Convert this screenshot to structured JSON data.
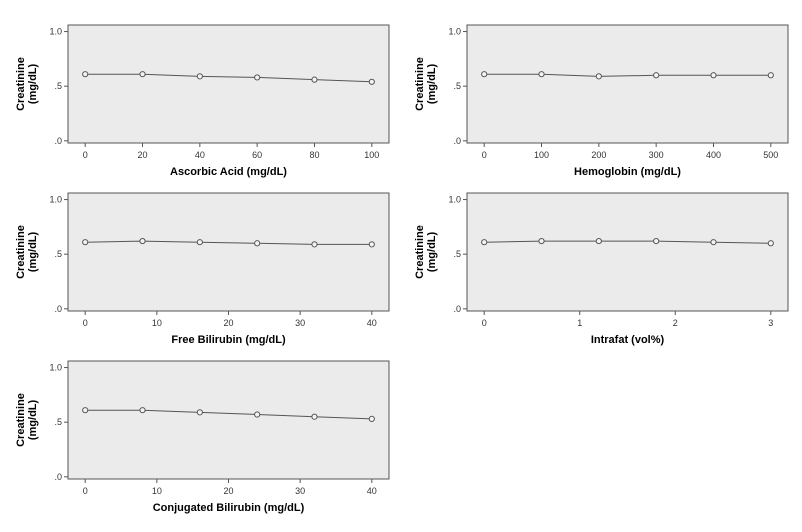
{
  "colors": {
    "plot_background": "#ebebeb",
    "line": "#555555",
    "marker_fill": "#f4f4f4",
    "marker_stroke": "#555555",
    "frame": "#555555"
  },
  "chart_data": [
    {
      "type": "line",
      "xlabel": "Ascorbic Acid (mg/dL)",
      "ylabel": "Creatinine (mg/dL)",
      "ylabel_lines": [
        "Creatinine",
        "(mg/dL)"
      ],
      "x": [
        0,
        20,
        40,
        60,
        80,
        100
      ],
      "y": [
        0.61,
        0.61,
        0.59,
        0.58,
        0.56,
        0.54
      ],
      "xlim": [
        -6,
        106
      ],
      "ylim": [
        -0.02,
        1.06
      ],
      "xticks": [
        0,
        20,
        40,
        60,
        80,
        100
      ],
      "xtick_labels": [
        "0",
        "20",
        "40",
        "60",
        "80",
        "100"
      ],
      "yticks": [
        0,
        0.5,
        1.0
      ],
      "ytick_labels": [
        ".0",
        ".5",
        "1.0"
      ],
      "grid": false
    },
    {
      "type": "line",
      "xlabel": "Hemoglobin (mg/dL)",
      "ylabel": "Creatinine (mg/dL)",
      "ylabel_lines": [
        "Creatinine",
        "(mg/dL)"
      ],
      "x": [
        0,
        100,
        200,
        300,
        400,
        500
      ],
      "y": [
        0.61,
        0.61,
        0.59,
        0.6,
        0.6,
        0.6
      ],
      "xlim": [
        -30,
        530
      ],
      "ylim": [
        -0.02,
        1.06
      ],
      "xticks": [
        0,
        100,
        200,
        300,
        400,
        500
      ],
      "xtick_labels": [
        "0",
        "100",
        "200",
        "300",
        "400",
        "500"
      ],
      "yticks": [
        0,
        0.5,
        1.0
      ],
      "ytick_labels": [
        ".0",
        ".5",
        "1.0"
      ],
      "grid": false
    },
    {
      "type": "line",
      "xlabel": "Free Bilirubin (mg/dL)",
      "ylabel": "Creatinine (mg/dL)",
      "ylabel_lines": [
        "Creatinine",
        "(mg/dL)"
      ],
      "x": [
        0,
        8,
        16,
        24,
        32,
        40
      ],
      "y": [
        0.61,
        0.62,
        0.61,
        0.6,
        0.59,
        0.59
      ],
      "xlim": [
        -2.4,
        42.4
      ],
      "ylim": [
        -0.02,
        1.06
      ],
      "xticks": [
        0,
        10,
        20,
        30,
        40
      ],
      "xtick_labels": [
        "0",
        "10",
        "20",
        "30",
        "40"
      ],
      "yticks": [
        0,
        0.5,
        1.0
      ],
      "ytick_labels": [
        ".0",
        ".5",
        "1.0"
      ],
      "grid": false
    },
    {
      "type": "line",
      "xlabel": "Intrafat (vol%)",
      "ylabel": "Creatinine (mg/dL)",
      "ylabel_lines": [
        "Creatinine",
        "(mg/dL)"
      ],
      "x": [
        0,
        0.6,
        1.2,
        1.8,
        2.4,
        3.0
      ],
      "y": [
        0.61,
        0.62,
        0.62,
        0.62,
        0.61,
        0.6
      ],
      "xlim": [
        -0.18,
        3.18
      ],
      "ylim": [
        -0.02,
        1.06
      ],
      "xticks": [
        0,
        1,
        2,
        3
      ],
      "xtick_labels": [
        "0",
        "1",
        "2",
        "3"
      ],
      "yticks": [
        0,
        0.5,
        1.0
      ],
      "ytick_labels": [
        ".0",
        ".5",
        "1.0"
      ],
      "grid": false
    },
    {
      "type": "line",
      "xlabel": "Conjugated Bilirubin (mg/dL)",
      "ylabel": "Creatinine (mg/dL)",
      "ylabel_lines": [
        "Creatinine",
        "(mg/dL)"
      ],
      "x": [
        0,
        8,
        16,
        24,
        32,
        40
      ],
      "y": [
        0.61,
        0.61,
        0.59,
        0.57,
        0.55,
        0.53
      ],
      "xlim": [
        -2.4,
        42.4
      ],
      "ylim": [
        -0.02,
        1.06
      ],
      "xticks": [
        0,
        10,
        20,
        30,
        40
      ],
      "xtick_labels": [
        "0",
        "10",
        "20",
        "30",
        "40"
      ],
      "yticks": [
        0,
        0.5,
        1.0
      ],
      "ytick_labels": [
        ".0",
        ".5",
        "1.0"
      ],
      "grid": false
    }
  ]
}
